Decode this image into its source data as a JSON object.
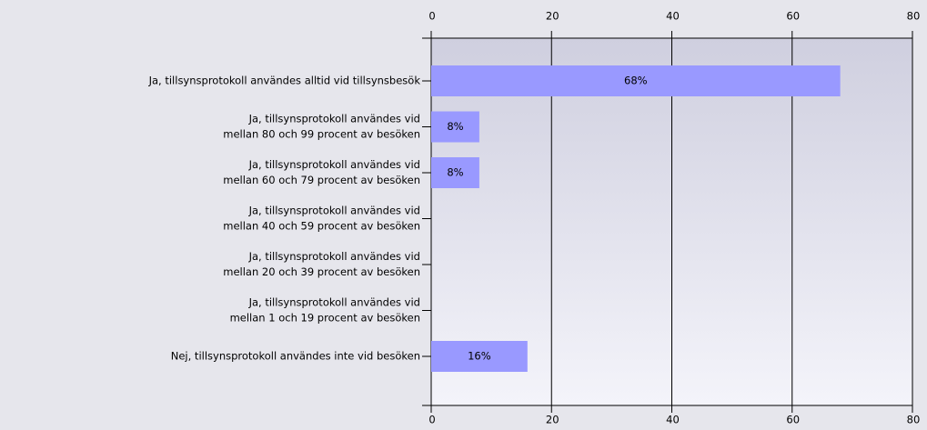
{
  "chart_data": {
    "type": "bar",
    "orientation": "horizontal",
    "categories": [
      [
        "Ja, tillsynsprotokoll användes alltid vid tillsynsbesök"
      ],
      [
        "Ja, tillsynsprotokoll användes vid",
        "mellan 80 och 99 procent av besöken"
      ],
      [
        "Ja, tillsynsprotokoll användes vid",
        "mellan 60 och 79 procent av besöken"
      ],
      [
        "Ja, tillsynsprotokoll användes vid",
        "mellan 40 och 59 procent av besöken"
      ],
      [
        "Ja, tillsynsprotokoll användes vid",
        "mellan 20 och 39 procent av besöken"
      ],
      [
        "Ja, tillsynsprotokoll användes vid",
        "mellan 1 och 19 procent av besöken"
      ],
      [
        "Nej, tillsynsprotokoll användes inte vid besöken"
      ]
    ],
    "values": [
      68,
      8,
      8,
      0,
      0,
      0,
      16
    ],
    "value_labels": [
      "68%",
      "8%",
      "8%",
      null,
      null,
      null,
      "16%"
    ],
    "color": "#9999ff",
    "xlim": [
      0,
      80
    ],
    "xticks": [
      0,
      20,
      40,
      60,
      80
    ],
    "grid": true
  }
}
